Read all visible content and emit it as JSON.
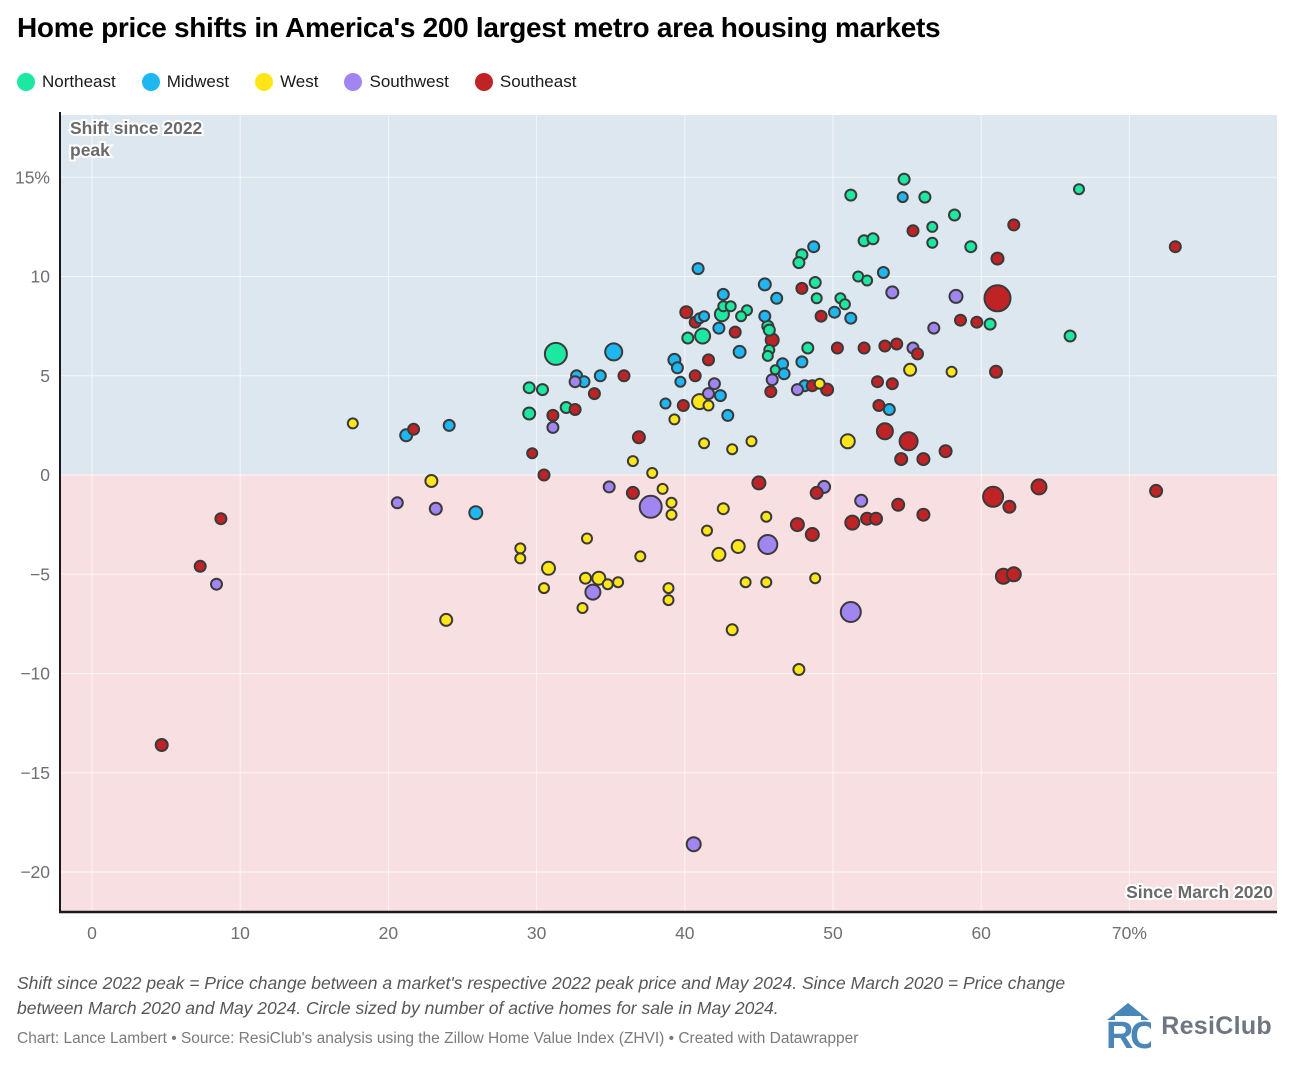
{
  "title": "Home price shifts in America's 200 largest metro area housing markets",
  "legend": [
    {
      "label": "Northeast",
      "color": "#1ce8a2"
    },
    {
      "label": "Midwest",
      "color": "#1eb7f2"
    },
    {
      "label": "West",
      "color": "#ffe619"
    },
    {
      "label": "Southwest",
      "color": "#a185f0"
    },
    {
      "label": "Southeast",
      "color": "#c02325"
    }
  ],
  "annotations": {
    "y_axis_line1": "Shift since 2022",
    "y_axis_line2": "peak",
    "x_axis": "Since March 2020"
  },
  "footer": {
    "note": "Shift since 2022 peak = Price change between a market's respective 2022 peak price and May 2024. Since March 2020 = Price change between March 2020 and May 2024. Circle sized by number of active homes for sale in May 2024.",
    "credit": "Chart: Lance Lambert • Source: ResiClub's analysis using the Zillow Home Value Index (ZHVI) • Created with Datawrapper"
  },
  "logo": {
    "text": "ResiClub"
  },
  "colors": {
    "above_zero_bg": "#dde7f0",
    "below_zero_bg": "#f8dfe2",
    "gridline": "rgba(255,255,255,0.65)",
    "axis_line": "#1a1a1a",
    "tick_label": "#6f6f6f",
    "annotation": "#6a6a6a",
    "point_stroke": "#3a3a3a"
  },
  "chart_data": {
    "type": "scatter",
    "title": "Home price shifts in America's 200 largest metro area housing markets",
    "xlabel": "Since March 2020 (%)",
    "ylabel": "Shift since 2022 peak (%)",
    "xlim": [
      -2.2,
      80
    ],
    "ylim": [
      -22.2,
      18.2
    ],
    "x_ticks": [
      {
        "v": 0,
        "label": "0"
      },
      {
        "v": 10,
        "label": "10"
      },
      {
        "v": 20,
        "label": "20"
      },
      {
        "v": 30,
        "label": "30"
      },
      {
        "v": 40,
        "label": "40"
      },
      {
        "v": 50,
        "label": "50"
      },
      {
        "v": 60,
        "label": "60"
      },
      {
        "v": 70,
        "label": "70%"
      }
    ],
    "y_ticks": [
      {
        "v": 15,
        "label": "15%"
      },
      {
        "v": 10,
        "label": "10"
      },
      {
        "v": 5,
        "label": "5"
      },
      {
        "v": 0,
        "label": "0"
      },
      {
        "v": -5,
        "label": "−5"
      },
      {
        "v": -10,
        "label": "−10"
      },
      {
        "v": -15,
        "label": "−15"
      },
      {
        "v": -20,
        "label": "−20"
      }
    ],
    "grid": true,
    "legend_position": "top",
    "point_note": "each point = [since_march_2020_pct, shift_since_2022_peak_pct, bubble_radius_px]",
    "series": [
      {
        "name": "Northeast",
        "color": "#1ce8a2",
        "points": [
          [
            51.2,
            14.1,
            5.5
          ],
          [
            54.8,
            14.9,
            5.5
          ],
          [
            56.2,
            14.0,
            5.5
          ],
          [
            66.6,
            14.4,
            5
          ],
          [
            58.2,
            13.1,
            5.5
          ],
          [
            56.7,
            12.5,
            5
          ],
          [
            56.7,
            11.7,
            5
          ],
          [
            52.1,
            11.8,
            5.5
          ],
          [
            52.7,
            11.9,
            5.5
          ],
          [
            59.3,
            11.5,
            5.5
          ],
          [
            47.9,
            11.1,
            5.5
          ],
          [
            47.7,
            10.7,
            5.5
          ],
          [
            51.7,
            10.0,
            5
          ],
          [
            52.3,
            9.8,
            5
          ],
          [
            48.8,
            9.7,
            5.5
          ],
          [
            48.9,
            8.9,
            5
          ],
          [
            50.5,
            8.9,
            5
          ],
          [
            50.8,
            8.6,
            5
          ],
          [
            42.6,
            8.5,
            5
          ],
          [
            43.1,
            8.5,
            5
          ],
          [
            44.2,
            8.3,
            5
          ],
          [
            42.5,
            8.1,
            7
          ],
          [
            43.8,
            8.0,
            5
          ],
          [
            40.2,
            6.9,
            5.5
          ],
          [
            41.2,
            7.0,
            7.5
          ],
          [
            45.6,
            7.5,
            5.5
          ],
          [
            45.7,
            7.3,
            5.5
          ],
          [
            45.7,
            6.3,
            5
          ],
          [
            45.6,
            6.0,
            5
          ],
          [
            48.3,
            6.4,
            5.5
          ],
          [
            66.0,
            7.0,
            5.5
          ],
          [
            60.6,
            7.6,
            5.5
          ],
          [
            31.3,
            6.1,
            11
          ],
          [
            29.5,
            4.4,
            5.5
          ],
          [
            30.4,
            4.3,
            5.5
          ],
          [
            32.0,
            3.4,
            5.5
          ],
          [
            29.5,
            3.1,
            6
          ],
          [
            46.1,
            5.3,
            4.5
          ]
        ]
      },
      {
        "name": "Midwest",
        "color": "#1eb7f2",
        "points": [
          [
            48.7,
            11.5,
            5.5
          ],
          [
            54.7,
            14.0,
            5
          ],
          [
            53.4,
            10.2,
            5.5
          ],
          [
            40.9,
            10.4,
            5.5
          ],
          [
            45.4,
            9.6,
            6
          ],
          [
            42.6,
            9.1,
            5.5
          ],
          [
            46.2,
            8.9,
            5.5
          ],
          [
            50.1,
            8.2,
            5.5
          ],
          [
            51.2,
            7.9,
            5.5
          ],
          [
            41.0,
            7.9,
            5
          ],
          [
            41.3,
            8.0,
            5
          ],
          [
            42.3,
            7.4,
            5.5
          ],
          [
            43.7,
            6.2,
            6
          ],
          [
            45.4,
            8.0,
            5.5
          ],
          [
            35.2,
            6.2,
            8.5
          ],
          [
            39.3,
            5.8,
            6
          ],
          [
            39.5,
            5.4,
            5.5
          ],
          [
            39.7,
            4.7,
            5
          ],
          [
            34.3,
            5.0,
            5.5
          ],
          [
            32.7,
            5.0,
            5.5
          ],
          [
            33.2,
            4.7,
            5.5
          ],
          [
            42.4,
            4.0,
            5.5
          ],
          [
            48.1,
            4.5,
            5.5
          ],
          [
            46.6,
            5.6,
            5.5
          ],
          [
            46.7,
            5.1,
            5.5
          ],
          [
            47.9,
            5.7,
            5.5
          ],
          [
            38.7,
            3.6,
            5
          ],
          [
            42.9,
            3.0,
            5.5
          ],
          [
            53.8,
            3.3,
            5.5
          ],
          [
            21.2,
            2.0,
            6
          ],
          [
            24.1,
            2.5,
            5.5
          ],
          [
            25.9,
            -1.9,
            6.5
          ]
        ]
      },
      {
        "name": "West",
        "color": "#ffe619",
        "points": [
          [
            17.6,
            2.6,
            5
          ],
          [
            22.9,
            -0.3,
            6
          ],
          [
            23.9,
            -7.3,
            6
          ],
          [
            36.5,
            0.7,
            5
          ],
          [
            37.8,
            0.1,
            5
          ],
          [
            39.3,
            2.8,
            5
          ],
          [
            41.3,
            1.6,
            5
          ],
          [
            43.2,
            1.3,
            5
          ],
          [
            44.5,
            1.7,
            5
          ],
          [
            41.0,
            3.7,
            7.5
          ],
          [
            41.6,
            3.5,
            5
          ],
          [
            49.1,
            4.6,
            5
          ],
          [
            55.2,
            5.3,
            6
          ],
          [
            58.0,
            5.2,
            5
          ],
          [
            51.0,
            1.7,
            7
          ],
          [
            33.4,
            -3.2,
            5
          ],
          [
            28.9,
            -3.7,
            5
          ],
          [
            28.9,
            -4.2,
            5
          ],
          [
            30.8,
            -4.7,
            6.5
          ],
          [
            30.5,
            -5.7,
            5
          ],
          [
            37.0,
            -4.1,
            5
          ],
          [
            33.3,
            -5.2,
            5.5
          ],
          [
            34.2,
            -5.2,
            6.5
          ],
          [
            34.8,
            -5.5,
            5
          ],
          [
            35.5,
            -5.4,
            5
          ],
          [
            33.1,
            -6.7,
            5
          ],
          [
            38.9,
            -5.7,
            5
          ],
          [
            38.9,
            -6.3,
            5
          ],
          [
            43.2,
            -7.8,
            5.5
          ],
          [
            45.5,
            -2.1,
            5
          ],
          [
            41.5,
            -2.8,
            5
          ],
          [
            42.3,
            -4.0,
            6.5
          ],
          [
            43.6,
            -3.6,
            6.5
          ],
          [
            44.1,
            -5.4,
            5
          ],
          [
            45.5,
            -5.4,
            5
          ],
          [
            48.8,
            -5.2,
            5
          ],
          [
            47.7,
            -9.8,
            5.5
          ],
          [
            39.1,
            -1.4,
            5
          ],
          [
            39.1,
            -2.0,
            5
          ],
          [
            38.5,
            -0.7,
            5
          ],
          [
            42.6,
            -1.7,
            5.5
          ]
        ]
      },
      {
        "name": "Southwest",
        "color": "#a185f0",
        "points": [
          [
            20.6,
            -1.4,
            5.5
          ],
          [
            23.2,
            -1.7,
            6
          ],
          [
            8.4,
            -5.5,
            5.5
          ],
          [
            31.1,
            2.4,
            5.5
          ],
          [
            32.6,
            4.7,
            5.5
          ],
          [
            45.9,
            4.8,
            5.5
          ],
          [
            47.6,
            4.3,
            5.5
          ],
          [
            54.0,
            9.2,
            6
          ],
          [
            58.3,
            9.0,
            6.5
          ],
          [
            56.8,
            7.4,
            5.5
          ],
          [
            55.4,
            6.4,
            5.5
          ],
          [
            37.7,
            -1.6,
            11
          ],
          [
            34.9,
            -0.6,
            5.5
          ],
          [
            33.8,
            -5.9,
            7.5
          ],
          [
            45.6,
            -3.5,
            9.5
          ],
          [
            51.2,
            -6.9,
            10
          ],
          [
            40.6,
            -18.6,
            7
          ],
          [
            49.4,
            -0.6,
            6
          ],
          [
            51.9,
            -1.3,
            6
          ],
          [
            41.6,
            4.1,
            5.5
          ],
          [
            42.0,
            4.6,
            5.5
          ]
        ]
      },
      {
        "name": "Southeast",
        "color": "#c02325",
        "points": [
          [
            4.7,
            -13.6,
            6
          ],
          [
            7.3,
            -4.6,
            5.5
          ],
          [
            8.7,
            -2.2,
            5.5
          ],
          [
            21.7,
            2.3,
            5.5
          ],
          [
            29.7,
            1.1,
            5
          ],
          [
            30.5,
            0.0,
            5.5
          ],
          [
            32.6,
            3.3,
            5.5
          ],
          [
            31.1,
            3.0,
            5.5
          ],
          [
            33.9,
            4.1,
            5.5
          ],
          [
            35.9,
            5.0,
            5.5
          ],
          [
            36.9,
            1.9,
            6
          ],
          [
            40.1,
            8.2,
            6
          ],
          [
            40.7,
            7.7,
            5.5
          ],
          [
            41.6,
            5.8,
            5.5
          ],
          [
            43.4,
            7.2,
            5.5
          ],
          [
            45.9,
            6.8,
            6.5
          ],
          [
            40.7,
            5.0,
            5.5
          ],
          [
            39.9,
            3.5,
            5.5
          ],
          [
            45.8,
            4.2,
            5.5
          ],
          [
            48.6,
            4.5,
            5.5
          ],
          [
            49.6,
            4.3,
            6
          ],
          [
            47.9,
            9.4,
            5.5
          ],
          [
            49.2,
            8.0,
            5.5
          ],
          [
            50.3,
            6.4,
            5.5
          ],
          [
            52.1,
            6.4,
            5.5
          ],
          [
            55.4,
            12.3,
            5.5
          ],
          [
            61.1,
            10.9,
            6
          ],
          [
            62.2,
            12.6,
            5.5
          ],
          [
            73.1,
            11.5,
            5.5
          ],
          [
            61.1,
            8.9,
            13
          ],
          [
            58.6,
            7.8,
            5.5
          ],
          [
            59.7,
            7.7,
            5.5
          ],
          [
            53.5,
            6.5,
            5.5
          ],
          [
            54.3,
            6.6,
            5.5
          ],
          [
            55.7,
            6.1,
            5.5
          ],
          [
            61.0,
            5.2,
            6
          ],
          [
            54.0,
            4.6,
            5.5
          ],
          [
            53.0,
            4.7,
            5.5
          ],
          [
            53.1,
            3.5,
            5.5
          ],
          [
            53.5,
            2.2,
            8
          ],
          [
            55.1,
            1.7,
            9
          ],
          [
            54.6,
            0.8,
            6
          ],
          [
            56.1,
            0.8,
            6
          ],
          [
            57.6,
            1.2,
            6
          ],
          [
            36.5,
            -0.9,
            6
          ],
          [
            45.0,
            -0.4,
            6.5
          ],
          [
            47.6,
            -2.5,
            6.5
          ],
          [
            48.6,
            -3.0,
            6.5
          ],
          [
            48.9,
            -0.9,
            6
          ],
          [
            51.3,
            -2.4,
            7
          ],
          [
            52.3,
            -2.2,
            6
          ],
          [
            52.9,
            -2.2,
            6
          ],
          [
            54.4,
            -1.5,
            6
          ],
          [
            56.1,
            -2.0,
            6
          ],
          [
            60.8,
            -1.1,
            10
          ],
          [
            61.9,
            -1.6,
            6
          ],
          [
            63.9,
            -0.6,
            7.5
          ],
          [
            71.8,
            -0.8,
            6
          ],
          [
            61.5,
            -5.1,
            7.5
          ],
          [
            62.2,
            -5.0,
            7
          ]
        ]
      }
    ]
  }
}
